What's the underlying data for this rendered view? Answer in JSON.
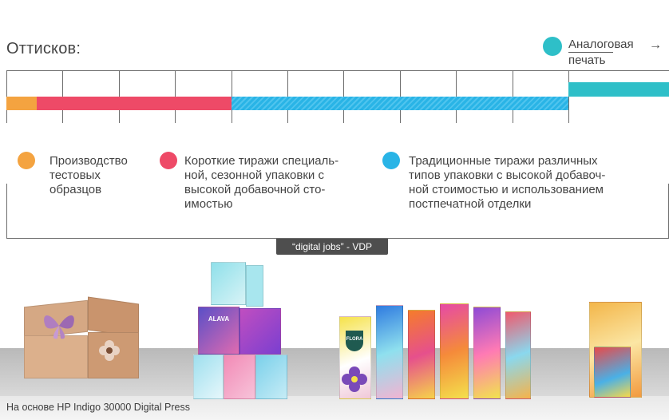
{
  "title": "Оттисков:",
  "analog": {
    "label_line1": "Аналоговая",
    "label_line2": "печать",
    "arrow": "→",
    "color": "#2ebfc8"
  },
  "legend": [
    {
      "lines": [
        "Производство",
        "тестовых",
        "образцов"
      ],
      "color": "#f4a340"
    },
    {
      "lines": [
        "Короткие тиражи специаль-",
        "ной, сезонной упаковки с",
        "высокой добавочной сто-",
        "имостью"
      ],
      "color": "#ee4a67"
    },
    {
      "lines": [
        "Традиционные тиражи различных",
        "типов упаковки с высокой добавоч-",
        "ной стоимостью и использованием",
        "постпечатной отделки"
      ],
      "color": "#29b4e6"
    }
  ],
  "vdp_badge": "“digital jobs” - VDP",
  "caption": "На основе HP Indigo 30000 Digital Press",
  "product_brands": {
    "tissue": "ALAVA",
    "juice": "FLORA"
  }
}
